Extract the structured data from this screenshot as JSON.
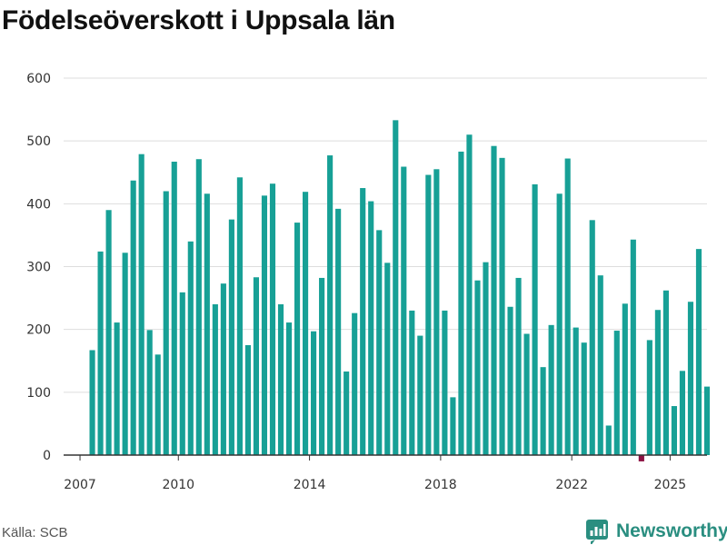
{
  "title": "Födelseöverskott i Uppsala län",
  "source": "Källa: SCB",
  "brand": "Newsworthy",
  "colors": {
    "positive": "#17a096",
    "negative": "#8c1142",
    "grid": "#dddddd",
    "axis": "#333333",
    "brand": "#2a8e80"
  },
  "chart_data": {
    "type": "bar",
    "title": "Födelseöverskott i Uppsala län",
    "xlabel": "",
    "ylabel": "",
    "ylim": [
      0,
      600
    ],
    "yticks": [
      0,
      100,
      200,
      300,
      400,
      500,
      600
    ],
    "xlim": [
      2006.5,
      2026.125
    ],
    "xticks": [
      2007,
      2010,
      2014,
      2018,
      2022,
      2025
    ],
    "period": "quarter",
    "start": "2007Q2",
    "series": [
      {
        "name": "Födelseöverskott",
        "values": [
          167,
          324,
          390,
          211,
          322,
          437,
          479,
          199,
          160,
          420,
          467,
          259,
          340,
          471,
          416,
          240,
          273,
          375,
          442,
          175,
          283,
          413,
          432,
          240,
          211,
          370,
          419,
          197,
          282,
          477,
          392,
          133,
          226,
          425,
          404,
          358,
          306,
          533,
          459,
          230,
          190,
          446,
          455,
          230,
          92,
          483,
          510,
          278,
          307,
          492,
          473,
          236,
          282,
          193,
          431,
          140,
          207,
          416,
          472,
          203,
          179,
          374,
          286,
          47,
          198,
          241,
          343,
          -10,
          183,
          231,
          262,
          78,
          134,
          244,
          328,
          109
        ]
      }
    ]
  }
}
